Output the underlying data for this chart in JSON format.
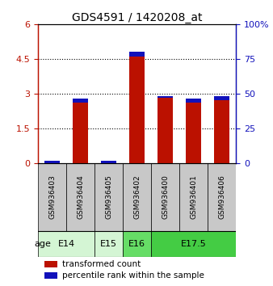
{
  "title": "GDS4591 / 1420208_at",
  "samples": [
    "GSM936403",
    "GSM936404",
    "GSM936405",
    "GSM936402",
    "GSM936400",
    "GSM936401",
    "GSM936406"
  ],
  "red_values": [
    0.08,
    2.8,
    0.05,
    4.8,
    2.9,
    2.78,
    2.88
  ],
  "blue_values": [
    0.09,
    0.17,
    0.09,
    0.18,
    0.09,
    0.17,
    0.16
  ],
  "left_ylim": [
    0,
    6
  ],
  "left_yticks": [
    0,
    1.5,
    3,
    4.5,
    6
  ],
  "left_yticklabels": [
    "0",
    "1.5",
    "3",
    "4.5",
    "6"
  ],
  "right_yticks": [
    0,
    25,
    50,
    75,
    100
  ],
  "right_yticklabels": [
    "0",
    "25",
    "50",
    "75",
    "100%"
  ],
  "dotted_lines": [
    1.5,
    3.0,
    4.5
  ],
  "age_groups": [
    {
      "label": "E14",
      "span": [
        0,
        2
      ],
      "color": "#d4f5d4"
    },
    {
      "label": "E15",
      "span": [
        2,
        3
      ],
      "color": "#d4f5d4"
    },
    {
      "label": "E16",
      "span": [
        3,
        4
      ],
      "color": "#66dd66"
    },
    {
      "label": "E17.5",
      "span": [
        4,
        7
      ],
      "color": "#44cc44"
    }
  ],
  "bar_color_red": "#bb1100",
  "bar_color_blue": "#1111bb",
  "bar_width": 0.55,
  "legend_red": "transformed count",
  "legend_blue": "percentile rank within the sample",
  "bg_sample_color": "#c8c8c8",
  "title_fontsize": 10,
  "tick_fontsize": 8,
  "sample_label_fontsize": 6.5,
  "age_fontsize": 8
}
